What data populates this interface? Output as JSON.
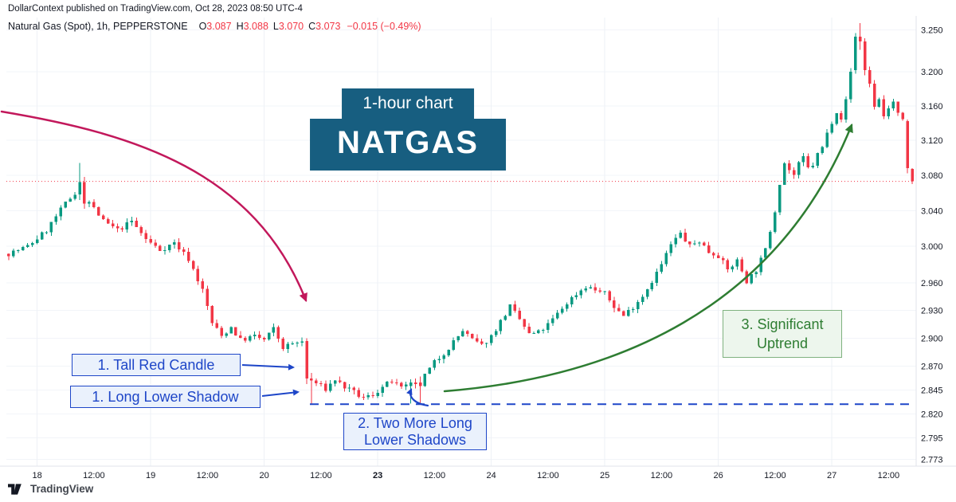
{
  "attribution": "DollarContext published on TradingView.com, Oct 28, 2023 08:50 UTC-4",
  "legend": {
    "symbol": "Natural Gas (Spot), 1h, PEPPERSTONE",
    "o_label": "O",
    "o": "3.087",
    "h_label": "H",
    "h": "3.088",
    "l_label": "L",
    "l": "3.070",
    "c_label": "C",
    "c": "3.073",
    "change": "−0.015 (−0.49%)"
  },
  "badge": {
    "line1": "1-hour chart",
    "title": "NATGAS"
  },
  "annotations": {
    "tall_red_candle": "1. Tall Red Candle",
    "long_lower_shadow": "1. Long Lower Shadow",
    "two_more_line1": "2. Two More Long",
    "two_more_line2": "Lower Shadows",
    "uptrend_line1": "3. Significant",
    "uptrend_line2": "Uptrend"
  },
  "footer": {
    "brand": "TradingView"
  },
  "colors": {
    "up": "#089981",
    "down": "#F23645",
    "badge_bg": "#175E80",
    "anno_blue": "#1E46C8",
    "anno_blue_bg": "#EAF1FC",
    "anno_green": "#2E7D32",
    "anno_green_bg": "#EDF6ED",
    "anno_green_border": "#7FB27F",
    "green_arrow": "#2E7D32",
    "crimson": "#C2185B",
    "support_blue": "#1E46C8",
    "axis_text": "#131722"
  },
  "chart_data": {
    "type": "candlestick",
    "symbol": "Natural Gas (Spot)",
    "interval": "1h",
    "provider": "PEPPERSTONE",
    "ohlc_last": {
      "o": 3.087,
      "h": 3.088,
      "l": 3.07,
      "c": 3.073,
      "change": -0.015,
      "change_pct": -0.49
    },
    "price_scale": {
      "top": 3.262,
      "bottom": 2.77,
      "log": true
    },
    "y_axis_labels": [
      "3.250",
      "3.200",
      "3.160",
      "3.120",
      "3.080",
      "3.040",
      "3.000",
      "2.960",
      "2.930",
      "2.900",
      "2.870",
      "2.845",
      "2.820",
      "2.795",
      "2.773"
    ],
    "x_axis_labels": [
      {
        "label": "18",
        "index": 6,
        "bold": false
      },
      {
        "label": "12:00",
        "index": 18,
        "bold": false
      },
      {
        "label": "19",
        "index": 30,
        "bold": false
      },
      {
        "label": "12:00",
        "index": 42,
        "bold": false
      },
      {
        "label": "20",
        "index": 54,
        "bold": false
      },
      {
        "label": "12:00",
        "index": 66,
        "bold": false
      },
      {
        "label": "23",
        "index": 78,
        "bold": true
      },
      {
        "label": "12:00",
        "index": 90,
        "bold": false
      },
      {
        "label": "24",
        "index": 102,
        "bold": false
      },
      {
        "label": "12:00",
        "index": 114,
        "bold": false
      },
      {
        "label": "25",
        "index": 126,
        "bold": false
      },
      {
        "label": "12:00",
        "index": 138,
        "bold": false
      },
      {
        "label": "26",
        "index": 150,
        "bold": false
      },
      {
        "label": "12:00",
        "index": 162,
        "bold": false
      },
      {
        "label": "27",
        "index": 174,
        "bold": false
      },
      {
        "label": "12:00",
        "index": 186,
        "bold": false
      }
    ],
    "candle_count": 192,
    "day_start_indices": [
      6,
      30,
      54,
      78,
      102,
      126,
      150,
      174
    ],
    "support_level": 2.83,
    "support_start_index": 64,
    "last_price": 3.073,
    "max_price": 3.2585,
    "min_price": 2.8305,
    "seed": 7,
    "waypoints": [
      [
        0,
        2.992
      ],
      [
        4,
        3.0
      ],
      [
        8,
        3.018
      ],
      [
        12,
        3.048
      ],
      [
        14,
        3.06
      ],
      [
        17,
        3.05
      ],
      [
        20,
        3.028
      ],
      [
        23,
        3.018
      ],
      [
        26,
        3.028
      ],
      [
        29,
        3.008
      ],
      [
        32,
        2.996
      ],
      [
        35,
        3.004
      ],
      [
        38,
        2.986
      ],
      [
        41,
        2.952
      ],
      [
        43,
        2.916
      ],
      [
        45,
        2.902
      ],
      [
        47,
        2.912
      ],
      [
        49,
        2.898
      ],
      [
        52,
        2.902
      ],
      [
        54,
        2.898
      ],
      [
        56,
        2.91
      ],
      [
        58,
        2.89
      ],
      [
        60,
        2.894
      ],
      [
        62,
        2.896
      ],
      [
        65,
        2.852
      ],
      [
        67,
        2.846
      ],
      [
        69,
        2.856
      ],
      [
        71,
        2.848
      ],
      [
        73,
        2.842
      ],
      [
        75,
        2.836
      ],
      [
        77,
        2.84
      ],
      [
        79,
        2.848
      ],
      [
        81,
        2.854
      ],
      [
        83,
        2.846
      ],
      [
        86,
        2.852
      ],
      [
        88,
        2.86
      ],
      [
        90,
        2.874
      ],
      [
        92,
        2.884
      ],
      [
        94,
        2.896
      ],
      [
        96,
        2.908
      ],
      [
        98,
        2.898
      ],
      [
        100,
        2.892
      ],
      [
        102,
        2.902
      ],
      [
        104,
        2.918
      ],
      [
        106,
        2.934
      ],
      [
        108,
        2.92
      ],
      [
        110,
        2.904
      ],
      [
        112,
        2.906
      ],
      [
        114,
        2.914
      ],
      [
        116,
        2.926
      ],
      [
        118,
        2.938
      ],
      [
        120,
        2.948
      ],
      [
        122,
        2.956
      ],
      [
        124,
        2.952
      ],
      [
        126,
        2.948
      ],
      [
        128,
        2.934
      ],
      [
        130,
        2.924
      ],
      [
        132,
        2.934
      ],
      [
        134,
        2.946
      ],
      [
        136,
        2.962
      ],
      [
        138,
        2.98
      ],
      [
        140,
        3.002
      ],
      [
        142,
        3.014
      ],
      [
        144,
        3.0
      ],
      [
        146,
        3.006
      ],
      [
        148,
        2.994
      ],
      [
        150,
        2.99
      ],
      [
        152,
        2.974
      ],
      [
        154,
        2.984
      ],
      [
        156,
        2.962
      ],
      [
        158,
        2.974
      ],
      [
        160,
        2.996
      ],
      [
        162,
        3.04
      ],
      [
        163,
        3.072
      ],
      [
        164,
        3.094
      ],
      [
        165,
        3.086
      ],
      [
        166,
        3.08
      ],
      [
        167,
        3.092
      ],
      [
        168,
        3.1
      ],
      [
        169,
        3.088
      ],
      [
        170,
        3.092
      ],
      [
        171,
        3.104
      ],
      [
        172,
        3.112
      ],
      [
        173,
        3.128
      ],
      [
        174,
        3.142
      ],
      [
        175,
        3.154
      ],
      [
        176,
        3.146
      ],
      [
        177,
        3.166
      ],
      [
        178,
        3.2
      ],
      [
        182,
        3.186
      ],
      [
        183,
        3.16
      ],
      [
        184,
        3.168
      ],
      [
        185,
        3.148
      ],
      [
        186,
        3.158
      ],
      [
        187,
        3.164
      ],
      [
        188,
        3.15
      ],
      [
        189,
        3.142
      ],
      [
        191,
        3.078
      ]
    ],
    "overrides": [
      {
        "i": 15,
        "o": 3.058,
        "h": 3.094,
        "l": 3.052,
        "c": 3.072
      },
      {
        "i": 16,
        "o": 3.072,
        "h": 3.078,
        "l": 3.042,
        "c": 3.048
      },
      {
        "i": 63,
        "o": 2.897,
        "h": 2.9,
        "l": 2.851,
        "c": 2.857
      },
      {
        "i": 64,
        "o": 2.857,
        "h": 2.863,
        "l": 2.8305,
        "c": 2.855
      },
      {
        "i": 85,
        "o": 2.849,
        "h": 2.856,
        "l": 2.8305,
        "c": 2.853
      },
      {
        "i": 87,
        "o": 2.853,
        "h": 2.859,
        "l": 2.8315,
        "c": 2.849
      },
      {
        "i": 179,
        "o": 3.202,
        "h": 3.246,
        "l": 3.198,
        "c": 3.242
      },
      {
        "i": 180,
        "o": 3.242,
        "h": 3.258,
        "l": 3.226,
        "c": 3.236
      },
      {
        "i": 181,
        "o": 3.236,
        "h": 3.24,
        "l": 3.196,
        "c": 3.202
      },
      {
        "i": 190,
        "o": 3.142,
        "h": 3.144,
        "l": 3.082,
        "c": 3.088
      },
      {
        "i": 191,
        "o": 3.087,
        "h": 3.088,
        "l": 3.07,
        "c": 3.073
      }
    ]
  }
}
